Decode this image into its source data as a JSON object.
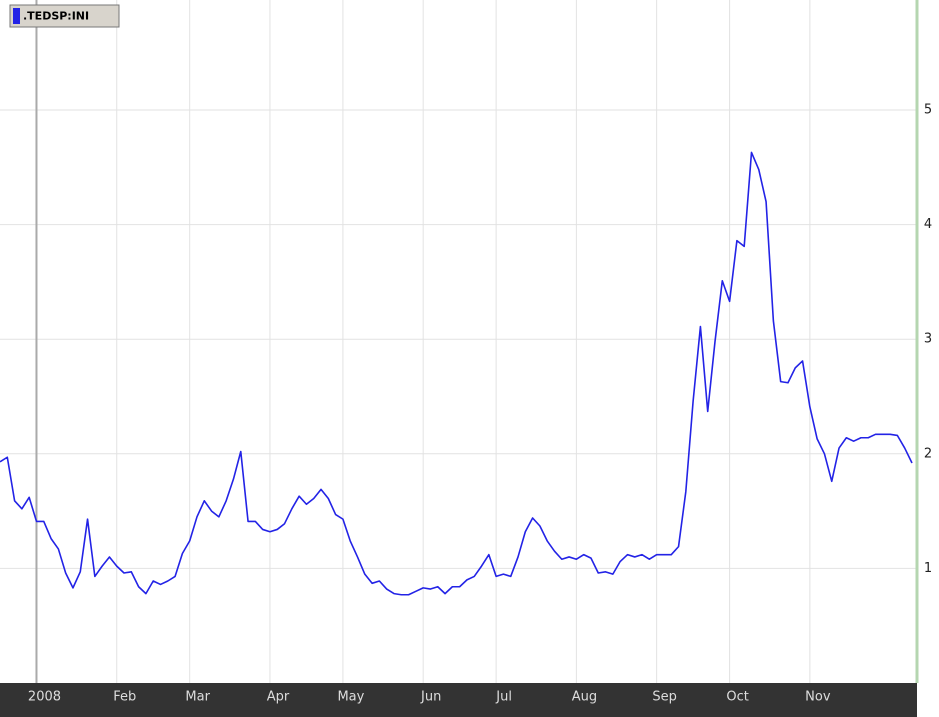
{
  "chart_data": {
    "type": "line",
    "categories": [
      null,
      null,
      null,
      null,
      null,
      "2008",
      null,
      null,
      null,
      null,
      null,
      null,
      null,
      null,
      null,
      null,
      "Feb",
      null,
      null,
      null,
      null,
      null,
      null,
      null,
      null,
      null,
      "Mar",
      null,
      null,
      null,
      null,
      null,
      null,
      null,
      null,
      null,
      null,
      "Apr",
      null,
      null,
      null,
      null,
      null,
      null,
      null,
      null,
      null,
      "May",
      null,
      null,
      null,
      null,
      null,
      null,
      null,
      null,
      null,
      null,
      "Jun",
      null,
      null,
      null,
      null,
      null,
      null,
      null,
      null,
      null,
      "Jul",
      null,
      null,
      null,
      null,
      null,
      null,
      null,
      null,
      null,
      null,
      "Aug",
      null,
      null,
      null,
      null,
      null,
      null,
      null,
      null,
      null,
      null,
      "Sep",
      null,
      null,
      null,
      null,
      null,
      null,
      null,
      null,
      null,
      "Oct",
      null,
      null,
      null,
      null,
      null,
      null,
      null,
      null,
      null,
      null,
      "Nov",
      null,
      null,
      null,
      null,
      null,
      null,
      null,
      null,
      null,
      null,
      null,
      null,
      null,
      null
    ],
    "series": [
      {
        "name": ".TEDSP:INI",
        "color": "#2323e6",
        "values": [
          1.93,
          1.97,
          1.59,
          1.52,
          1.62,
          1.41,
          1.41,
          1.26,
          1.17,
          0.96,
          0.83,
          0.97,
          1.43,
          0.93,
          1.02,
          1.1,
          1.02,
          0.96,
          0.97,
          0.84,
          0.78,
          0.89,
          0.86,
          0.89,
          0.93,
          1.13,
          1.24,
          1.45,
          1.59,
          1.5,
          1.45,
          1.59,
          1.78,
          2.02,
          1.41,
          1.41,
          1.34,
          1.32,
          1.34,
          1.39,
          1.52,
          1.63,
          1.56,
          1.61,
          1.69,
          1.61,
          1.47,
          1.43,
          1.24,
          1.1,
          0.95,
          0.87,
          0.89,
          0.82,
          0.78,
          0.77,
          0.77,
          0.8,
          0.83,
          0.82,
          0.84,
          0.78,
          0.84,
          0.84,
          0.9,
          0.93,
          1.02,
          1.12,
          0.93,
          0.95,
          0.93,
          1.1,
          1.32,
          1.44,
          1.37,
          1.24,
          1.15,
          1.08,
          1.1,
          1.08,
          1.12,
          1.09,
          0.96,
          0.97,
          0.95,
          1.06,
          1.12,
          1.1,
          1.12,
          1.08,
          1.12,
          1.12,
          1.12,
          1.19,
          1.67,
          2.46,
          3.11,
          2.37,
          2.98,
          3.51,
          3.33,
          3.86,
          3.81,
          4.63,
          4.48,
          4.2,
          3.16,
          2.63,
          2.62,
          2.75,
          2.81,
          2.41,
          2.13,
          2.0,
          1.76,
          2.05,
          2.14,
          2.11,
          2.14,
          2.14,
          2.17,
          2.17,
          2.17,
          2.16,
          2.05,
          1.92
        ]
      }
    ],
    "ylim": [
      0,
      5.96
    ],
    "yticks": [
      1,
      2,
      3,
      4,
      5
    ],
    "grid": true
  }
}
